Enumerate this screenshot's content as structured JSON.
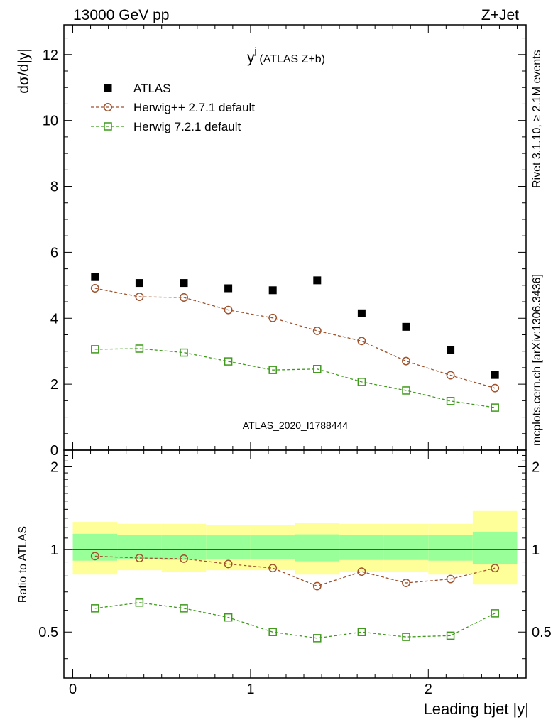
{
  "header": {
    "left": "13000 GeV pp",
    "right": "Z+Jet"
  },
  "side_text": {
    "rivet": "Rivet 3.1.10, ≥ 2.1M events",
    "mcplots": "mcplots.cern.ch [arXiv:1306.3436]"
  },
  "watermark": "ATLAS_2020_I1788444",
  "plot_title": {
    "main": "y",
    "sup": "j",
    "sub": "(ATLAS Z+b)"
  },
  "colors": {
    "data": "#000000",
    "herwigpp": "#a0522d",
    "herwig7": "#3f9a1c",
    "band_inner": "#99ff99",
    "band_outer": "#ffff99"
  },
  "chart_data": [
    {
      "type": "scatter",
      "panel": "main",
      "ylabel": "dσ/d|y|",
      "ylim": [
        0,
        12.9
      ],
      "xlim": [
        -0.05,
        2.55
      ],
      "yticks": [
        0,
        2,
        4,
        6,
        8,
        10,
        12
      ],
      "ytick_labels": [
        "0",
        "2",
        "4",
        "6",
        "8",
        "10",
        "12"
      ],
      "legend_position": "top-left",
      "x": [
        0.125,
        0.375,
        0.625,
        0.875,
        1.125,
        1.375,
        1.625,
        1.875,
        2.125,
        2.375
      ],
      "series": [
        {
          "name": "ATLAS",
          "marker": "filled-square",
          "values": [
            5.25,
            5.07,
            5.07,
            4.91,
            4.85,
            5.15,
            4.15,
            3.74,
            3.03,
            2.28
          ]
        },
        {
          "name": "Herwig++ 2.7.1 default",
          "marker": "open-circle",
          "values": [
            4.91,
            4.65,
            4.63,
            4.25,
            4.01,
            3.62,
            3.31,
            2.7,
            2.27,
            1.88
          ]
        },
        {
          "name": "Herwig 7.2.1 default",
          "marker": "open-square",
          "values": [
            3.06,
            3.08,
            2.96,
            2.69,
            2.43,
            2.46,
            2.07,
            1.81,
            1.49,
            1.29
          ]
        }
      ]
    },
    {
      "type": "line",
      "panel": "ratio",
      "ylabel": "Ratio to ATLAS",
      "xlabel": "Leading bjet |y|",
      "ylim": [
        0.34,
        2.3
      ],
      "xlim": [
        -0.05,
        2.55
      ],
      "xticks": [
        0,
        1,
        2
      ],
      "xtick_labels": [
        "0",
        "1",
        "2"
      ],
      "yticks": [
        0.5,
        1,
        2
      ],
      "ytick_labels": [
        "0.5",
        "1",
        "2"
      ],
      "bin_edges": [
        0,
        0.25,
        0.5,
        0.75,
        1.0,
        1.25,
        1.5,
        1.75,
        2.0,
        2.25,
        2.5
      ],
      "band_inner": {
        "low": [
          0.91,
          0.92,
          0.915,
          0.92,
          0.92,
          0.905,
          0.915,
          0.915,
          0.91,
          0.885
        ],
        "high": [
          1.14,
          1.13,
          1.13,
          1.125,
          1.125,
          1.135,
          1.13,
          1.125,
          1.13,
          1.16
        ]
      },
      "band_outer": {
        "low": [
          0.81,
          0.84,
          0.83,
          0.84,
          0.84,
          0.81,
          0.83,
          0.83,
          0.81,
          0.745
        ],
        "high": [
          1.26,
          1.24,
          1.24,
          1.23,
          1.23,
          1.25,
          1.24,
          1.24,
          1.24,
          1.38
        ]
      },
      "x": [
        0.125,
        0.375,
        0.625,
        0.875,
        1.125,
        1.375,
        1.625,
        1.875,
        2.125,
        2.375
      ],
      "series": [
        {
          "name": "Herwig++ 2.7.1 default",
          "marker": "open-circle",
          "values": [
            0.945,
            0.93,
            0.925,
            0.885,
            0.855,
            0.735,
            0.83,
            0.755,
            0.78,
            0.855
          ]
        },
        {
          "name": "Herwig 7.2.1 default",
          "marker": "open-square",
          "values": [
            0.61,
            0.64,
            0.61,
            0.565,
            0.5,
            0.475,
            0.5,
            0.48,
            0.485,
            0.585
          ]
        }
      ]
    }
  ]
}
